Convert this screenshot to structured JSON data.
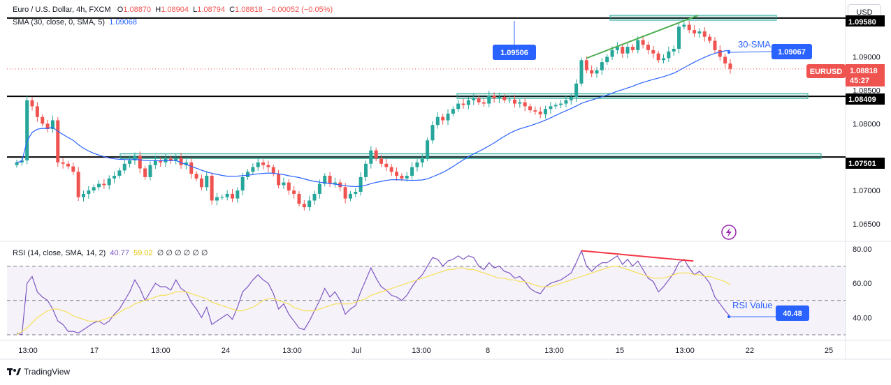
{
  "header": {
    "symbol": "Euro / U.S. Dollar, 4h, FXCM",
    "o_label": "O",
    "o_value": "1.08870",
    "h_label": "H",
    "h_value": "1.08904",
    "l_label": "L",
    "l_value": "1.08794",
    "c_label": "C",
    "c_value": "1.08818",
    "change": "−0.00052 (−0.05%)",
    "sma_label": "SMA (30, close, 0, SMA, 5)",
    "sma_value": "1.09068"
  },
  "currency_button": "USD",
  "branding": "TradingView",
  "rsi_header": {
    "label": "RSI (14, close, SMA, 14, 2)",
    "rsi_value": "40.77",
    "ma_value": "59.02",
    "extras": "∅ ∅ ∅ ∅ ∅ ∅"
  },
  "colors": {
    "bull": "#26a69a",
    "bear": "#ef5350",
    "sma": "#2962ff",
    "rsi": "#7e57c2",
    "rsi_ma": "#f7e05a",
    "trend_up": "#4caf50",
    "trend_div": "#f23645"
  },
  "chart_data": [
    {
      "type": "candlestick",
      "title": "Euro / U.S. Dollar, 4h, FXCM",
      "ylim": [
        1.0625,
        1.0985
      ],
      "y_ticks": [
        "1.06500",
        "1.07000",
        "1.08000",
        "1.08500",
        "1.09000"
      ],
      "x_ticks": [
        "13:00",
        "17",
        "13:00",
        "24",
        "13:00",
        "Jul",
        "13:00",
        "8",
        "13:00",
        "15",
        "13:00",
        "22",
        "25"
      ],
      "close_series": [
        1.0742,
        1.0745,
        1.0835,
        1.0826,
        1.081,
        1.08,
        1.0792,
        1.0805,
        1.0742,
        1.074,
        1.0736,
        1.0728,
        1.069,
        1.0695,
        1.07,
        1.0705,
        1.071,
        1.0708,
        1.0718,
        1.0722,
        1.073,
        1.074,
        1.0745,
        1.0752,
        1.0733,
        1.072,
        1.0738,
        1.0745,
        1.0742,
        1.0748,
        1.0744,
        1.0749,
        1.0738,
        1.0742,
        1.0725,
        1.0718,
        1.0705,
        1.0722,
        1.0685,
        1.069,
        1.069,
        1.0695,
        1.0688,
        1.07,
        1.072,
        1.0728,
        1.0735,
        1.0742,
        1.0738,
        1.0735,
        1.0725,
        1.0708,
        1.0712,
        1.07,
        1.0695,
        1.068,
        1.0675,
        1.0685,
        1.0695,
        1.071,
        1.0722,
        1.071,
        1.0712,
        1.0705,
        1.0688,
        1.0695,
        1.0698,
        1.072,
        1.074,
        1.076,
        1.0748,
        1.074,
        1.0735,
        1.0728,
        1.0722,
        1.0718,
        1.0722,
        1.0735,
        1.0742,
        1.0748,
        1.0775,
        1.0798,
        1.081,
        1.0805,
        1.0815,
        1.0822,
        1.083,
        1.0828,
        1.0835,
        1.0838,
        1.0832,
        1.083,
        1.0842,
        1.0838,
        1.084,
        1.0835,
        1.0836,
        1.083,
        1.0832,
        1.0826,
        1.082,
        1.0818,
        1.0814,
        1.0822,
        1.0826,
        1.0828,
        1.083,
        1.0835,
        1.084,
        1.086,
        1.0895,
        1.088,
        1.0875,
        1.088,
        1.0892,
        1.09,
        1.091,
        1.0915,
        1.0905,
        1.0915,
        1.091,
        1.0925,
        1.0918,
        1.091,
        1.0905,
        1.0895,
        1.0898,
        1.0908,
        1.0912,
        1.0945,
        1.0948,
        1.094,
        1.0935,
        1.0938,
        1.093,
        1.0924,
        1.091,
        1.09,
        1.089,
        1.0882
      ],
      "sma": {
        "name": "30-SMA",
        "last_value": 1.09067
      },
      "levels": [
        1.0958,
        1.08409,
        1.07501
      ],
      "price_tags": {
        "last_label": "EURUSD",
        "last_price": "1.08818",
        "countdown": "45:27",
        "sma_tag": "1.09067",
        "level_tag_mid": "1.08409",
        "level_tag_low": "1.07501",
        "level_tag_top": "1.09580",
        "high_callout": "1.09506"
      },
      "annotations": {
        "sma": "30-SMA"
      }
    },
    {
      "type": "line",
      "title": "RSI (14, close, SMA, 14, 2)",
      "ylim": [
        30,
        80
      ],
      "y_ticks": [
        "40.00",
        "60.00",
        "80.00"
      ],
      "bands": [
        70,
        50,
        30
      ],
      "series": [
        {
          "name": "RSI",
          "values": [
            31,
            30,
            60,
            64,
            55,
            52,
            50,
            45,
            38,
            36,
            32,
            32,
            31,
            33,
            35,
            37,
            38,
            36,
            38,
            42,
            45,
            50,
            55,
            62,
            57,
            50,
            55,
            60,
            58,
            58,
            56,
            62,
            57,
            55,
            49,
            45,
            40,
            46,
            36,
            38,
            40,
            42,
            39,
            46,
            55,
            58,
            62,
            65,
            62,
            60,
            54,
            45,
            48,
            42,
            38,
            34,
            33,
            38,
            44,
            50,
            57,
            52,
            55,
            50,
            42,
            45,
            47,
            55,
            62,
            69,
            63,
            58,
            56,
            53,
            52,
            50,
            53,
            58,
            62,
            65,
            70,
            75,
            74,
            70,
            73,
            74,
            76,
            74,
            76,
            75,
            70,
            68,
            72,
            69,
            70,
            67,
            66,
            63,
            64,
            61,
            57,
            55,
            54,
            58,
            60,
            61,
            62,
            64,
            66,
            72,
            79,
            70,
            67,
            70,
            72,
            72,
            74,
            76,
            71,
            74,
            70,
            73,
            68,
            63,
            61,
            55,
            58,
            62,
            66,
            72,
            74,
            69,
            65,
            67,
            64,
            60,
            52,
            48,
            44,
            40.5
          ]
        },
        {
          "name": "RSI MA",
          "values": [
            30,
            32,
            34,
            37,
            40,
            42,
            44,
            45,
            45,
            44,
            43,
            41,
            40,
            39,
            38,
            38,
            38,
            39,
            40,
            41,
            43,
            45,
            46,
            48,
            49,
            50,
            51,
            52,
            53,
            53,
            54,
            55,
            55,
            55,
            54,
            53,
            52,
            51,
            49,
            48,
            47,
            46,
            45,
            44,
            44,
            45,
            46,
            48,
            50,
            51,
            51,
            50,
            49,
            48,
            46,
            45,
            44,
            44,
            44,
            45,
            46,
            47,
            48,
            48,
            48,
            48,
            49,
            50,
            51,
            53,
            54,
            55,
            56,
            57,
            58,
            59,
            60,
            61,
            62,
            63,
            64,
            65,
            66,
            67,
            68,
            68,
            69,
            69,
            68,
            68,
            67,
            66,
            65,
            64,
            63,
            63,
            62,
            62,
            61,
            61,
            60,
            59,
            58,
            58,
            58,
            59,
            60,
            61,
            62,
            63,
            64,
            65,
            66,
            67,
            68,
            69,
            70,
            70,
            69,
            68,
            67,
            66,
            65,
            64,
            63,
            63,
            63,
            64,
            65,
            66,
            66,
            66,
            65,
            65,
            64,
            64,
            63,
            62,
            61,
            59
          ]
        }
      ],
      "tags": {
        "rsi_value_label": "RSI Value",
        "rsi_value": "40.48"
      }
    }
  ]
}
